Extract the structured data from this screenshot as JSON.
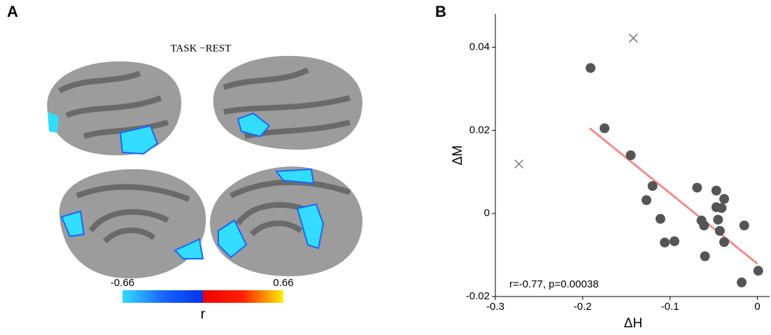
{
  "chart_data": [
    {
      "type": "surface-map",
      "panel": "A",
      "title": "TASK −REST",
      "colorbar": {
        "label": "r",
        "lim": [
          -0.66,
          0.66
        ],
        "ticks": [
          -0.66,
          0.66
        ]
      }
    },
    {
      "type": "scatter",
      "panel": "B",
      "xlabel": "ΔH",
      "ylabel": "ΔM",
      "annotation": "r=-0.77, p=0.00038",
      "xlim": [
        -0.3,
        0.014
      ],
      "ylim": [
        -0.02,
        0.048
      ],
      "xticks": [
        -0.3,
        -0.2,
        -0.1,
        0
      ],
      "yticks": [
        -0.02,
        0,
        0.02,
        0.04
      ],
      "points": {
        "color": "#555555",
        "x": [
          -0.191,
          -0.175,
          -0.145,
          -0.12,
          -0.127,
          -0.111,
          -0.106,
          -0.095,
          -0.069,
          -0.064,
          -0.061,
          -0.06,
          -0.047,
          -0.047,
          -0.038,
          -0.041,
          -0.045,
          -0.043,
          -0.038,
          -0.015,
          -0.018,
          0.001
        ],
        "y": [
          0.035,
          0.0205,
          0.014,
          0.0066,
          0.0032,
          -0.0013,
          -0.007,
          -0.0067,
          0.0062,
          -0.0017,
          -0.0029,
          -0.0103,
          0.0055,
          0.0015,
          0.0035,
          0.0013,
          -0.0015,
          -0.0042,
          -0.0069,
          -0.0029,
          -0.0166,
          -0.0138
        ]
      },
      "excluded": {
        "color": "#777777",
        "x": [
          -0.142,
          -0.273
        ],
        "y": [
          0.0422,
          0.0119
        ]
      },
      "fit": {
        "color": "#f28b8b",
        "x": [
          -0.192,
          0
        ],
        "y": [
          0.0205,
          -0.0121
        ]
      }
    }
  ]
}
